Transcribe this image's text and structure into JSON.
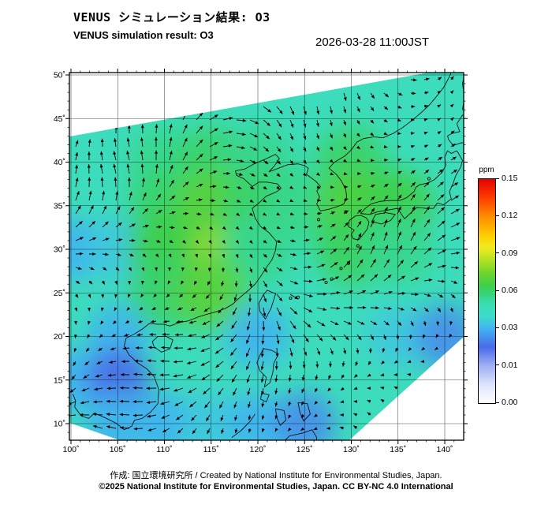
{
  "header": {
    "title_jp": "VENUS シミュレーション結果: O3",
    "title_en": "VENUS simulation result: O3",
    "datetime": "2026-03-28 11:00JST"
  },
  "footer": {
    "credit_line": "作成: 国立環境研究所 / Created by National Institute for Environmental Studies, Japan.",
    "license_line": "©2025 National Institute for Environmental Studies, Japan. CC BY-NC 4.0 International"
  },
  "chart_data": {
    "type": "heatmap",
    "subtype": "geographic O3 concentration field on a tilted satellite swath with wind vector overlay and coastlines",
    "title": "VENUS simulation result: O3",
    "species": "O3",
    "unit": "ppm",
    "timestamp": "2026-03-28 11:00JST",
    "lon_range": [
      100,
      140
    ],
    "lat_range": [
      10,
      50
    ],
    "grid_step_deg": 5,
    "wind_vectors": true,
    "lon_ticks": [
      100,
      105,
      110,
      115,
      120,
      125,
      130,
      135,
      140
    ],
    "lon_tick_labels": [
      "100˚",
      "105˚",
      "110˚",
      "115˚",
      "120˚",
      "125˚",
      "130˚",
      "135˚",
      "140˚"
    ],
    "lat_ticks": [
      10,
      15,
      20,
      25,
      30,
      35,
      40,
      45,
      50
    ],
    "lat_tick_labels": [
      "10˚",
      "15˚",
      "20˚",
      "25˚",
      "30˚",
      "35˚",
      "40˚",
      "45˚",
      "50˚"
    ],
    "colorbar": {
      "label": "ppm",
      "orientation": "vertical",
      "tick_values": [
        0.15,
        0.12,
        0.09,
        0.06,
        0.03,
        0.01,
        0.0
      ],
      "tick_labels": [
        "0.15",
        "0.12",
        "0.09",
        "0.06",
        "0.03",
        "0.01",
        "0.00"
      ],
      "scale_stops": [
        [
          0.0,
          "#ffffff"
        ],
        [
          0.005,
          "#dde3fb"
        ],
        [
          0.01,
          "#9fb0f4"
        ],
        [
          0.02,
          "#4a6ae8"
        ],
        [
          0.03,
          "#41b4f0"
        ],
        [
          0.04,
          "#3edccc"
        ],
        [
          0.05,
          "#3adcb2"
        ],
        [
          0.057,
          "#36d57e"
        ],
        [
          0.065,
          "#3ecf46"
        ],
        [
          0.075,
          "#72d52c"
        ],
        [
          0.085,
          "#b4e022"
        ],
        [
          0.095,
          "#f0ee1e"
        ],
        [
          0.105,
          "#ffcc00"
        ],
        [
          0.12,
          "#ff8c00"
        ],
        [
          0.135,
          "#ff3c00"
        ],
        [
          0.15,
          "#e60000"
        ]
      ]
    },
    "o3_field": {
      "description": "Approximate O3 mixing ratio (ppm) read from map colors on a 5-degree grid; null = outside observed swath",
      "lats": [
        50,
        45,
        40,
        35,
        30,
        25,
        20,
        15,
        10
      ],
      "lons": [
        100,
        105,
        110,
        115,
        120,
        125,
        130,
        135,
        140
      ],
      "values_ppm": [
        [
          null,
          null,
          null,
          null,
          null,
          null,
          null,
          0.04,
          0.04
        ],
        [
          null,
          null,
          0.045,
          0.05,
          0.05,
          0.05,
          0.045,
          0.04,
          0.04
        ],
        [
          0.04,
          0.05,
          0.055,
          0.06,
          0.055,
          0.05,
          0.06,
          0.05,
          0.045
        ],
        [
          0.045,
          0.05,
          0.06,
          0.07,
          0.06,
          0.055,
          0.068,
          0.065,
          0.05
        ],
        [
          0.03,
          0.035,
          0.065,
          0.08,
          0.055,
          0.05,
          0.062,
          0.055,
          0.05
        ],
        [
          0.04,
          0.04,
          0.06,
          0.07,
          0.05,
          0.045,
          0.05,
          0.045,
          0.04
        ],
        [
          0.04,
          0.03,
          0.045,
          0.04,
          0.03,
          0.04,
          0.04,
          0.035,
          0.025
        ],
        [
          0.03,
          0.02,
          0.04,
          0.04,
          0.04,
          0.05,
          0.04,
          null,
          null
        ],
        [
          null,
          0.03,
          0.03,
          0.035,
          0.03,
          0.025,
          null,
          null,
          null
        ]
      ]
    }
  }
}
